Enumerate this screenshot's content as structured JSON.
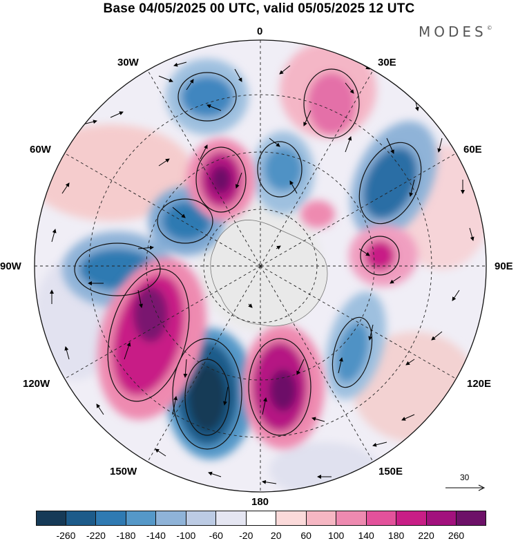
{
  "title": "Base 04/05/2025 00 UTC, valid 05/05/2025 12 UTC",
  "brand": "MODES",
  "brand_mark": "©",
  "lon_labels": {
    "l0": "0",
    "l30e": "30E",
    "l60e": "60E",
    "l90e": "90E",
    "l120e": "120E",
    "l150e": "150E",
    "l180": "180",
    "l150w": "150W",
    "l120w": "120W",
    "l90w": "90W",
    "l60w": "60W",
    "l30w": "30W"
  },
  "reference_vector": "30",
  "colorbar": {
    "ticks": [
      "-260",
      "-220",
      "-180",
      "-140",
      "-100",
      "-60",
      "-20",
      "20",
      "60",
      "100",
      "140",
      "180",
      "220",
      "260"
    ],
    "colors": [
      "#163a57",
      "#1d5b8a",
      "#2f7ab2",
      "#5598c8",
      "#8fb3d8",
      "#bccbe4",
      "#e5e6f2",
      "#ffffff",
      "#fbdada",
      "#f6b7c3",
      "#ee8ab0",
      "#e3529b",
      "#c81e86",
      "#a2117d",
      "#6d1168"
    ]
  },
  "projection": "south-polar-stereographic"
}
